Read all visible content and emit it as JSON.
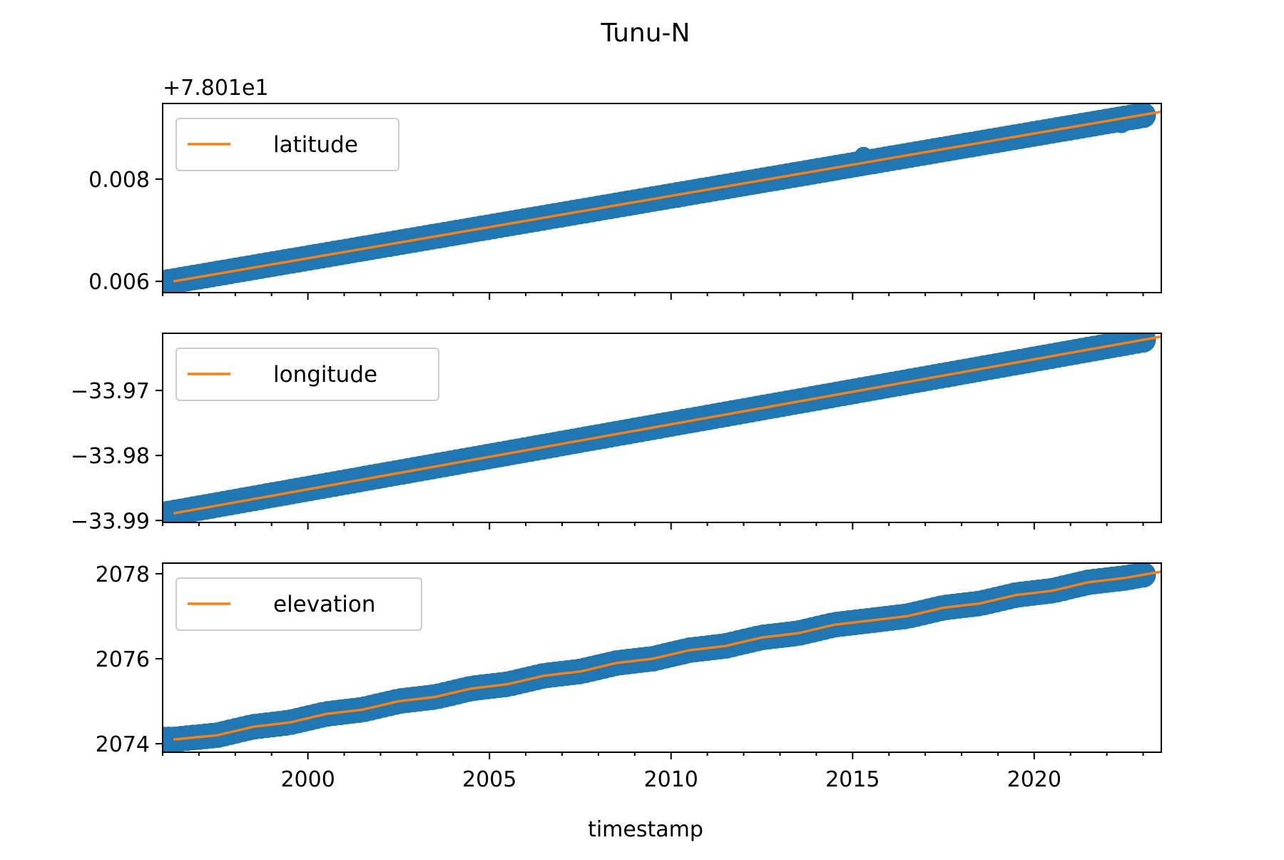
{
  "chart_data": {
    "type": "line",
    "title": "Tunu-N",
    "xlabel": "timestamp",
    "x_ticks": [
      "2000",
      "2005",
      "2010",
      "2015",
      "2020"
    ],
    "x_tick_values": [
      2000,
      2005,
      2010,
      2015,
      2020
    ],
    "xlim": [
      1996,
      2023.5
    ],
    "series_colors": {
      "points": "#1f77b4",
      "fit": "#ff7f0e"
    },
    "panels": [
      {
        "legend": "latitude",
        "legend_position": "upper left",
        "offset_text": "+7.801e1",
        "y_ticks": [
          "0.006",
          "0.008"
        ],
        "y_tick_values": [
          0.006,
          0.008
        ],
        "ylim": [
          0.00578,
          0.00948
        ],
        "fit_line": {
          "x": [
            1996.3,
            2023.5
          ],
          "y": [
            0.006,
            0.00932
          ]
        },
        "points": {
          "x_start": 1996.0,
          "x_end": 2023.0,
          "y_start": 0.00597,
          "y_end": 0.00925
        },
        "outliers": [
          {
            "x": 2015.3,
            "y": 0.00845
          },
          {
            "x": 2011.4,
            "y": 0.00777
          },
          {
            "x": 2012.4,
            "y": 0.00792
          },
          {
            "x": 2018.5,
            "y": 0.00872
          },
          {
            "x": 2022.4,
            "y": 0.00908
          }
        ]
      },
      {
        "legend": "longitude",
        "legend_position": "upper left",
        "offset_text": "",
        "y_ticks": [
          "−33.99",
          "−33.98",
          "−33.97"
        ],
        "y_tick_values": [
          -33.99,
          -33.98,
          -33.97
        ],
        "ylim": [
          -33.9903,
          -33.9612
        ],
        "fit_line": {
          "x": [
            1996.3,
            2023.5
          ],
          "y": [
            -33.9889,
            -33.9617
          ]
        },
        "points": {
          "x_start": 1996.0,
          "x_end": 2023.0,
          "y_start": -33.9891,
          "y_end": -33.9622
        },
        "outliers": []
      },
      {
        "legend": "elevation",
        "legend_position": "upper left",
        "offset_text": "",
        "y_ticks": [
          "2074",
          "2076",
          "2078"
        ],
        "y_tick_values": [
          2074,
          2076,
          2078
        ],
        "ylim": [
          2073.8,
          2078.25
        ],
        "fit_line": {
          "x": [
            1996.3,
            1997.5,
            1998.5,
            1999.5,
            2000.5,
            2001.5,
            2002.5,
            2003.5,
            2004.5,
            2005.5,
            2006.5,
            2007.5,
            2008.5,
            2009.5,
            2010.5,
            2011.5,
            2012.5,
            2013.5,
            2014.5,
            2015.5,
            2016.5,
            2017.5,
            2018.5,
            2019.5,
            2020.5,
            2021.5,
            2022.5,
            2023.5
          ],
          "y": [
            2074.1,
            2074.2,
            2074.4,
            2074.5,
            2074.7,
            2074.8,
            2075.0,
            2075.1,
            2075.3,
            2075.4,
            2075.6,
            2075.7,
            2075.9,
            2076.0,
            2076.2,
            2076.3,
            2076.5,
            2076.6,
            2076.8,
            2076.9,
            2077.0,
            2077.2,
            2077.3,
            2077.5,
            2077.6,
            2077.8,
            2077.9,
            2078.05
          ]
        },
        "points": {
          "x_start": 1996.0,
          "x_end": 2023.0,
          "y_start": 2074.05,
          "y_end": 2078.0
        },
        "outliers": []
      }
    ]
  }
}
